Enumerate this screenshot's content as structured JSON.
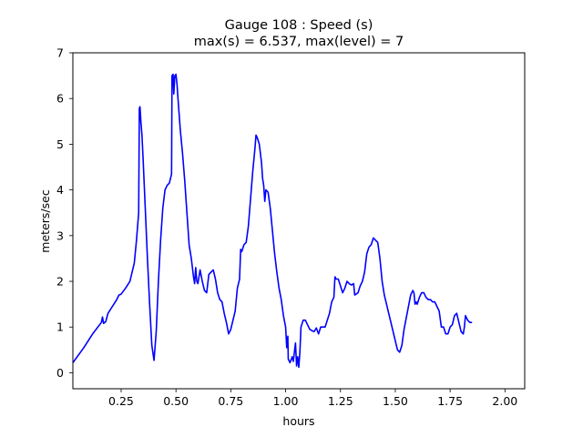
{
  "chart_data": {
    "type": "line",
    "title_line1": "Gauge 108 : Speed (s)",
    "title_line2": "max(s) =   6.537,    max(level) = 7",
    "xlabel": "hours",
    "ylabel": "meters/sec",
    "xlim": [
      0.03,
      2.09
    ],
    "ylim": [
      -0.35,
      7.0
    ],
    "x_ticks": [
      0.25,
      0.5,
      0.75,
      1.0,
      1.25,
      1.5,
      1.75,
      2.0
    ],
    "x_tick_labels": [
      "0.25",
      "0.50",
      "0.75",
      "1.00",
      "1.25",
      "1.50",
      "1.75",
      "2.00"
    ],
    "y_ticks": [
      0,
      1,
      2,
      3,
      4,
      5,
      6,
      7
    ],
    "y_tick_labels": [
      "0",
      "1",
      "2",
      "3",
      "4",
      "5",
      "6",
      "7"
    ],
    "grid": false,
    "series": [
      {
        "color": "#0000ff",
        "points": [
          [
            0.03,
            0.22
          ],
          [
            0.08,
            0.55
          ],
          [
            0.12,
            0.85
          ],
          [
            0.16,
            1.1
          ],
          [
            0.165,
            1.22
          ],
          [
            0.17,
            1.08
          ],
          [
            0.18,
            1.12
          ],
          [
            0.19,
            1.3
          ],
          [
            0.21,
            1.45
          ],
          [
            0.23,
            1.6
          ],
          [
            0.24,
            1.7
          ],
          [
            0.25,
            1.72
          ],
          [
            0.27,
            1.85
          ],
          [
            0.29,
            2.0
          ],
          [
            0.31,
            2.4
          ],
          [
            0.32,
            2.9
          ],
          [
            0.33,
            3.5
          ],
          [
            0.333,
            5.78
          ],
          [
            0.336,
            5.82
          ],
          [
            0.34,
            5.5
          ],
          [
            0.345,
            5.2
          ],
          [
            0.35,
            4.7
          ],
          [
            0.36,
            3.6
          ],
          [
            0.37,
            2.5
          ],
          [
            0.38,
            1.5
          ],
          [
            0.39,
            0.6
          ],
          [
            0.4,
            0.27
          ],
          [
            0.41,
            0.9
          ],
          [
            0.42,
            2.0
          ],
          [
            0.43,
            2.9
          ],
          [
            0.44,
            3.6
          ],
          [
            0.45,
            4.0
          ],
          [
            0.46,
            4.1
          ],
          [
            0.47,
            4.15
          ],
          [
            0.48,
            4.35
          ],
          [
            0.482,
            6.5
          ],
          [
            0.487,
            6.53
          ],
          [
            0.49,
            6.1
          ],
          [
            0.495,
            6.5
          ],
          [
            0.5,
            6.53
          ],
          [
            0.505,
            6.3
          ],
          [
            0.51,
            5.95
          ],
          [
            0.52,
            5.3
          ],
          [
            0.53,
            4.8
          ],
          [
            0.54,
            4.2
          ],
          [
            0.55,
            3.5
          ],
          [
            0.56,
            2.8
          ],
          [
            0.57,
            2.5
          ],
          [
            0.58,
            2.1
          ],
          [
            0.585,
            1.95
          ],
          [
            0.59,
            2.3
          ],
          [
            0.595,
            2.0
          ],
          [
            0.6,
            1.95
          ],
          [
            0.61,
            2.25
          ],
          [
            0.62,
            2.0
          ],
          [
            0.63,
            1.8
          ],
          [
            0.64,
            1.75
          ],
          [
            0.65,
            2.15
          ],
          [
            0.66,
            2.2
          ],
          [
            0.67,
            2.25
          ],
          [
            0.68,
            2.05
          ],
          [
            0.69,
            1.75
          ],
          [
            0.7,
            1.6
          ],
          [
            0.71,
            1.55
          ],
          [
            0.72,
            1.3
          ],
          [
            0.73,
            1.1
          ],
          [
            0.74,
            0.85
          ],
          [
            0.75,
            0.95
          ],
          [
            0.76,
            1.15
          ],
          [
            0.77,
            1.35
          ],
          [
            0.78,
            1.85
          ],
          [
            0.79,
            2.05
          ],
          [
            0.795,
            2.7
          ],
          [
            0.8,
            2.65
          ],
          [
            0.81,
            2.8
          ],
          [
            0.82,
            2.85
          ],
          [
            0.83,
            3.2
          ],
          [
            0.84,
            3.8
          ],
          [
            0.85,
            4.4
          ],
          [
            0.86,
            4.9
          ],
          [
            0.865,
            5.2
          ],
          [
            0.87,
            5.15
          ],
          [
            0.88,
            5.0
          ],
          [
            0.89,
            4.6
          ],
          [
            0.895,
            4.25
          ],
          [
            0.9,
            4.1
          ],
          [
            0.905,
            3.75
          ],
          [
            0.91,
            4.0
          ],
          [
            0.92,
            3.95
          ],
          [
            0.93,
            3.6
          ],
          [
            0.94,
            3.1
          ],
          [
            0.95,
            2.6
          ],
          [
            0.96,
            2.2
          ],
          [
            0.97,
            1.85
          ],
          [
            0.98,
            1.6
          ],
          [
            0.99,
            1.25
          ],
          [
            1.0,
            1.0
          ],
          [
            1.005,
            0.55
          ],
          [
            1.01,
            0.8
          ],
          [
            1.012,
            0.3
          ],
          [
            1.02,
            0.22
          ],
          [
            1.03,
            0.35
          ],
          [
            1.035,
            0.25
          ],
          [
            1.04,
            0.45
          ],
          [
            1.045,
            0.65
          ],
          [
            1.05,
            0.15
          ],
          [
            1.055,
            0.35
          ],
          [
            1.06,
            0.12
          ],
          [
            1.065,
            0.45
          ],
          [
            1.07,
            1.0
          ],
          [
            1.08,
            1.15
          ],
          [
            1.09,
            1.15
          ],
          [
            1.1,
            1.05
          ],
          [
            1.11,
            0.95
          ],
          [
            1.12,
            0.92
          ],
          [
            1.13,
            0.9
          ],
          [
            1.14,
            0.98
          ],
          [
            1.15,
            0.85
          ],
          [
            1.16,
            1.0
          ],
          [
            1.18,
            1.0
          ],
          [
            1.2,
            1.3
          ],
          [
            1.21,
            1.55
          ],
          [
            1.22,
            1.65
          ],
          [
            1.225,
            2.1
          ],
          [
            1.23,
            2.05
          ],
          [
            1.24,
            2.05
          ],
          [
            1.25,
            1.9
          ],
          [
            1.26,
            1.75
          ],
          [
            1.27,
            1.85
          ],
          [
            1.28,
            2.0
          ],
          [
            1.29,
            1.95
          ],
          [
            1.3,
            1.92
          ],
          [
            1.31,
            1.95
          ],
          [
            1.315,
            1.7
          ],
          [
            1.33,
            1.75
          ],
          [
            1.34,
            1.9
          ],
          [
            1.35,
            2.0
          ],
          [
            1.36,
            2.2
          ],
          [
            1.37,
            2.6
          ],
          [
            1.38,
            2.75
          ],
          [
            1.39,
            2.8
          ],
          [
            1.4,
            2.95
          ],
          [
            1.41,
            2.9
          ],
          [
            1.42,
            2.85
          ],
          [
            1.43,
            2.5
          ],
          [
            1.44,
            2.0
          ],
          [
            1.45,
            1.7
          ],
          [
            1.46,
            1.5
          ],
          [
            1.47,
            1.3
          ],
          [
            1.48,
            1.1
          ],
          [
            1.49,
            0.9
          ],
          [
            1.5,
            0.7
          ],
          [
            1.51,
            0.5
          ],
          [
            1.52,
            0.45
          ],
          [
            1.53,
            0.6
          ],
          [
            1.54,
            0.95
          ],
          [
            1.55,
            1.2
          ],
          [
            1.56,
            1.45
          ],
          [
            1.57,
            1.7
          ],
          [
            1.58,
            1.8
          ],
          [
            1.585,
            1.75
          ],
          [
            1.59,
            1.5
          ],
          [
            1.595,
            1.55
          ],
          [
            1.6,
            1.5
          ],
          [
            1.61,
            1.65
          ],
          [
            1.62,
            1.75
          ],
          [
            1.63,
            1.75
          ],
          [
            1.64,
            1.65
          ],
          [
            1.65,
            1.6
          ],
          [
            1.66,
            1.6
          ],
          [
            1.67,
            1.55
          ],
          [
            1.68,
            1.55
          ],
          [
            1.69,
            1.45
          ],
          [
            1.7,
            1.35
          ],
          [
            1.71,
            1.0
          ],
          [
            1.72,
            1.0
          ],
          [
            1.73,
            0.85
          ],
          [
            1.74,
            0.85
          ],
          [
            1.75,
            1.0
          ],
          [
            1.76,
            1.05
          ],
          [
            1.77,
            1.25
          ],
          [
            1.78,
            1.3
          ],
          [
            1.79,
            1.1
          ],
          [
            1.8,
            0.9
          ],
          [
            1.81,
            0.85
          ],
          [
            1.815,
            1.0
          ],
          [
            1.82,
            1.25
          ],
          [
            1.825,
            1.2
          ],
          [
            1.83,
            1.15
          ],
          [
            1.84,
            1.1
          ],
          [
            1.85,
            1.1
          ]
        ]
      }
    ]
  }
}
